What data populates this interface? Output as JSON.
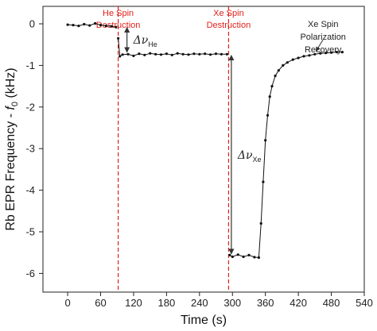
{
  "chart_data": {
    "type": "line",
    "xlabel": "Time (s)",
    "ylabel_main": "Rb EPR Frequency - ",
    "ylabel_f": "f",
    "ylabel_sub": "0",
    "ylabel_unit": " (kHz)",
    "xlim": [
      -45,
      540
    ],
    "ylim": [
      -6.45,
      0.42
    ],
    "x_ticks": [
      0,
      60,
      120,
      180,
      240,
      300,
      360,
      420,
      480,
      540
    ],
    "y_ticks": [
      0,
      -1,
      -2,
      -3,
      -4,
      -5,
      -6
    ],
    "x_tick_labels": [
      "0",
      "60",
      "120",
      "180",
      "240",
      "300",
      "360",
      "420",
      "480",
      "540"
    ],
    "y_tick_labels": [
      "0",
      "-1",
      "-2",
      "-3",
      "-4",
      "-5",
      "-6"
    ],
    "vlines": [
      {
        "x": 92,
        "label_line1": "He Spin",
        "label_line2": "Destruction"
      },
      {
        "x": 293,
        "label_line1": "Xe Spin",
        "label_line2": "Destruction"
      }
    ],
    "annotations": {
      "he_delta": {
        "symbol": "Δν",
        "sub": "He",
        "x": 108,
        "y_top": -0.05,
        "y_bottom": -0.72
      },
      "xe_delta": {
        "symbol": "Δν",
        "sub": "Xe",
        "x": 298,
        "y_top": -0.72,
        "y_bottom": -5.57
      },
      "recovery": {
        "line1": "Xe Spin",
        "line2": "Polarization",
        "line3": "Recovery",
        "arrow_from": [
          465,
          -0.38
        ],
        "arrow_to": [
          452,
          -0.66
        ]
      }
    },
    "series": [
      {
        "segments": [
          [
            [
              0,
              -0.02
            ],
            [
              10,
              -0.03
            ],
            [
              20,
              -0.05
            ],
            [
              30,
              -0.01
            ],
            [
              40,
              -0.04
            ],
            [
              50,
              0.01
            ],
            [
              60,
              -0.03
            ],
            [
              70,
              -0.05
            ],
            [
              80,
              -0.06
            ],
            [
              88,
              -0.08
            ]
          ],
          [
            [
              92,
              -0.35
            ],
            [
              95,
              -0.78
            ],
            [
              100,
              -0.74
            ],
            [
              110,
              -0.73
            ],
            [
              120,
              -0.77
            ],
            [
              130,
              -0.72
            ],
            [
              140,
              -0.75
            ],
            [
              150,
              -0.71
            ],
            [
              160,
              -0.73
            ],
            [
              170,
              -0.74
            ],
            [
              180,
              -0.72
            ],
            [
              190,
              -0.75
            ],
            [
              200,
              -0.71
            ],
            [
              210,
              -0.73
            ],
            [
              220,
              -0.74
            ],
            [
              230,
              -0.72
            ],
            [
              240,
              -0.73
            ],
            [
              250,
              -0.72
            ],
            [
              260,
              -0.74
            ],
            [
              270,
              -0.72
            ],
            [
              280,
              -0.73
            ],
            [
              290,
              -0.73
            ]
          ],
          [
            [
              295,
              -5.56
            ],
            [
              300,
              -5.6
            ],
            [
              310,
              -5.55
            ],
            [
              320,
              -5.6
            ],
            [
              330,
              -5.56
            ],
            [
              340,
              -5.61
            ],
            [
              348,
              -5.62
            ],
            [
              352,
              -4.8
            ],
            [
              356,
              -3.8
            ],
            [
              360,
              -2.8
            ],
            [
              364,
              -2.2
            ],
            [
              368,
              -1.75
            ],
            [
              372,
              -1.5
            ],
            [
              378,
              -1.25
            ],
            [
              384,
              -1.12
            ],
            [
              392,
              -1.0
            ],
            [
              400,
              -0.93
            ],
            [
              410,
              -0.86
            ],
            [
              420,
              -0.82
            ],
            [
              430,
              -0.78
            ],
            [
              440,
              -0.76
            ],
            [
              450,
              -0.73
            ],
            [
              460,
              -0.71
            ],
            [
              470,
              -0.7
            ],
            [
              480,
              -0.69
            ],
            [
              490,
              -0.68
            ],
            [
              500,
              -0.68
            ]
          ]
        ]
      }
    ]
  },
  "colors": {
    "data": "#111111",
    "vline": "#e0201b",
    "axis": "#222222"
  }
}
